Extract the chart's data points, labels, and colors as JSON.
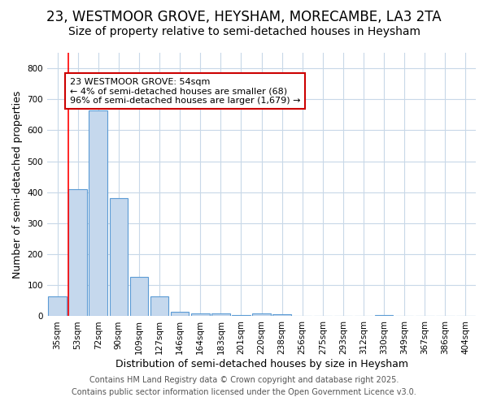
{
  "title1": "23, WESTMOOR GROVE, HEYSHAM, MORECAMBE, LA3 2TA",
  "title2": "Size of property relative to semi-detached houses in Heysham",
  "xlabel": "Distribution of semi-detached houses by size in Heysham",
  "ylabel": "Number of semi-detached properties",
  "categories": [
    "35sqm",
    "53sqm",
    "72sqm",
    "90sqm",
    "109sqm",
    "127sqm",
    "146sqm",
    "164sqm",
    "183sqm",
    "201sqm",
    "220sqm",
    "238sqm",
    "256sqm",
    "275sqm",
    "293sqm",
    "312sqm",
    "330sqm",
    "349sqm",
    "367sqm",
    "386sqm",
    "404sqm"
  ],
  "values": [
    65,
    410,
    665,
    382,
    127,
    65,
    15,
    10,
    10,
    5,
    10,
    7,
    0,
    0,
    0,
    0,
    5,
    0,
    0,
    0,
    0
  ],
  "bar_color": "#c5d8ed",
  "bar_edge_color": "#5b9bd5",
  "red_line_bar_index": 1,
  "annotation_text": "23 WESTMOOR GROVE: 54sqm\n← 4% of semi-detached houses are smaller (68)\n96% of semi-detached houses are larger (1,679) →",
  "annotation_box_facecolor": "#ffffff",
  "annotation_border_color": "#cc0000",
  "ylim": [
    0,
    850
  ],
  "yticks": [
    0,
    100,
    200,
    300,
    400,
    500,
    600,
    700,
    800
  ],
  "footer1": "Contains HM Land Registry data © Crown copyright and database right 2025.",
  "footer2": "Contains public sector information licensed under the Open Government Licence v3.0.",
  "background_color": "#ffffff",
  "plot_bg_color": "#ffffff",
  "grid_color": "#c8d8e8",
  "title1_fontsize": 12,
  "title2_fontsize": 10,
  "axis_label_fontsize": 9,
  "tick_fontsize": 7.5,
  "footer_fontsize": 7,
  "annotation_fontsize": 8
}
